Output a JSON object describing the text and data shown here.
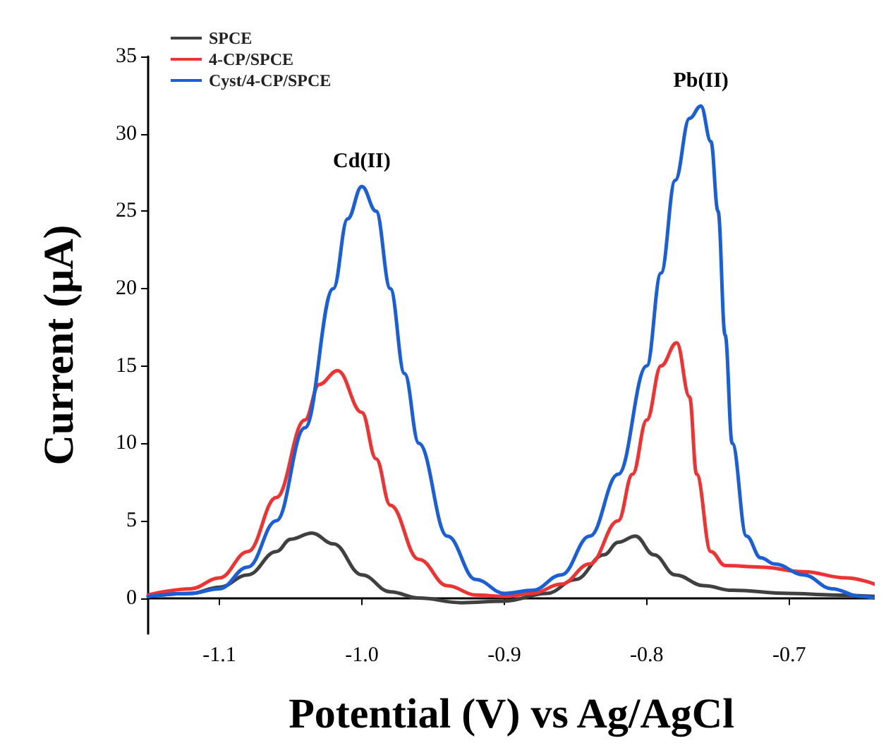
{
  "chart_data": {
    "type": "line",
    "xlabel": "Potential (V) vs Ag/AgCl",
    "ylabel": "Current (μA)",
    "xlim": [
      -1.15,
      -0.64
    ],
    "ylim": [
      -2.3,
      35
    ],
    "xticks": [
      {
        "value": -1.1,
        "label": "-1.1"
      },
      {
        "value": -1.0,
        "label": "-1.0"
      },
      {
        "value": -0.9,
        "label": "-0.9"
      },
      {
        "value": -0.8,
        "label": "-0.8"
      },
      {
        "value": -0.7,
        "label": "-0.7"
      }
    ],
    "yticks": [
      0,
      5,
      10,
      15,
      20,
      25,
      30,
      35
    ],
    "grid": false,
    "legend": "top left",
    "marker": "none",
    "line_style": "solid",
    "annotations": [
      {
        "text": "Cd(II)",
        "x": -1.0,
        "y": 26.6
      },
      {
        "text": "Pb(II)",
        "x": -0.762,
        "y": 31.8
      }
    ],
    "series": [
      {
        "name": "SPCE",
        "color": "#404040",
        "x": [
          -1.15,
          -1.12,
          -1.1,
          -1.08,
          -1.06,
          -1.05,
          -1.035,
          -1.02,
          -1.0,
          -0.98,
          -0.96,
          -0.93,
          -0.9,
          -0.87,
          -0.85,
          -0.83,
          -0.82,
          -0.808,
          -0.795,
          -0.78,
          -0.76,
          -0.74,
          -0.7,
          -0.67,
          -0.64
        ],
        "values": [
          0.1,
          0.3,
          0.7,
          1.5,
          3.0,
          3.8,
          4.2,
          3.5,
          1.5,
          0.4,
          0.0,
          -0.3,
          -0.2,
          0.3,
          1.2,
          2.8,
          3.6,
          4.0,
          2.8,
          1.5,
          0.8,
          0.5,
          0.3,
          0.2,
          0.1
        ]
      },
      {
        "name": "4-CP/SPCE",
        "color": "#ee3333",
        "x": [
          -1.15,
          -1.12,
          -1.1,
          -1.08,
          -1.06,
          -1.04,
          -1.03,
          -1.017,
          -1.0,
          -0.99,
          -0.98,
          -0.96,
          -0.94,
          -0.92,
          -0.9,
          -0.88,
          -0.86,
          -0.84,
          -0.82,
          -0.81,
          -0.8,
          -0.79,
          -0.779,
          -0.77,
          -0.765,
          -0.755,
          -0.745,
          -0.72,
          -0.69,
          -0.66,
          -0.64
        ],
        "values": [
          0.2,
          0.6,
          1.3,
          3.0,
          6.5,
          11.5,
          13.8,
          14.7,
          12.0,
          9.0,
          6.0,
          2.5,
          0.8,
          0.2,
          0.1,
          0.3,
          0.9,
          2.2,
          5.0,
          8.0,
          11.5,
          15.0,
          16.5,
          13.0,
          8.0,
          3.0,
          2.1,
          2.0,
          1.7,
          1.3,
          0.9
        ]
      },
      {
        "name": "Cyst/4-CP/SPCE",
        "color": "#1a5fd6",
        "x": [
          -1.15,
          -1.12,
          -1.1,
          -1.08,
          -1.06,
          -1.04,
          -1.02,
          -1.01,
          -1.0,
          -0.99,
          -0.98,
          -0.97,
          -0.96,
          -0.94,
          -0.92,
          -0.9,
          -0.88,
          -0.86,
          -0.84,
          -0.82,
          -0.8,
          -0.79,
          -0.78,
          -0.77,
          -0.762,
          -0.755,
          -0.75,
          -0.745,
          -0.74,
          -0.73,
          -0.72,
          -0.71,
          -0.69,
          -0.67,
          -0.65,
          -0.64
        ],
        "values": [
          0.1,
          0.3,
          0.6,
          2.0,
          5.0,
          11.0,
          20.0,
          24.5,
          26.6,
          25.0,
          20.0,
          14.5,
          10.0,
          4.0,
          1.2,
          0.3,
          0.5,
          1.5,
          4.0,
          8.0,
          15.0,
          21.0,
          27.0,
          31.0,
          31.8,
          29.5,
          25.0,
          17.0,
          10.0,
          4.0,
          2.6,
          2.2,
          1.5,
          0.6,
          0.1,
          0.0
        ]
      }
    ]
  }
}
